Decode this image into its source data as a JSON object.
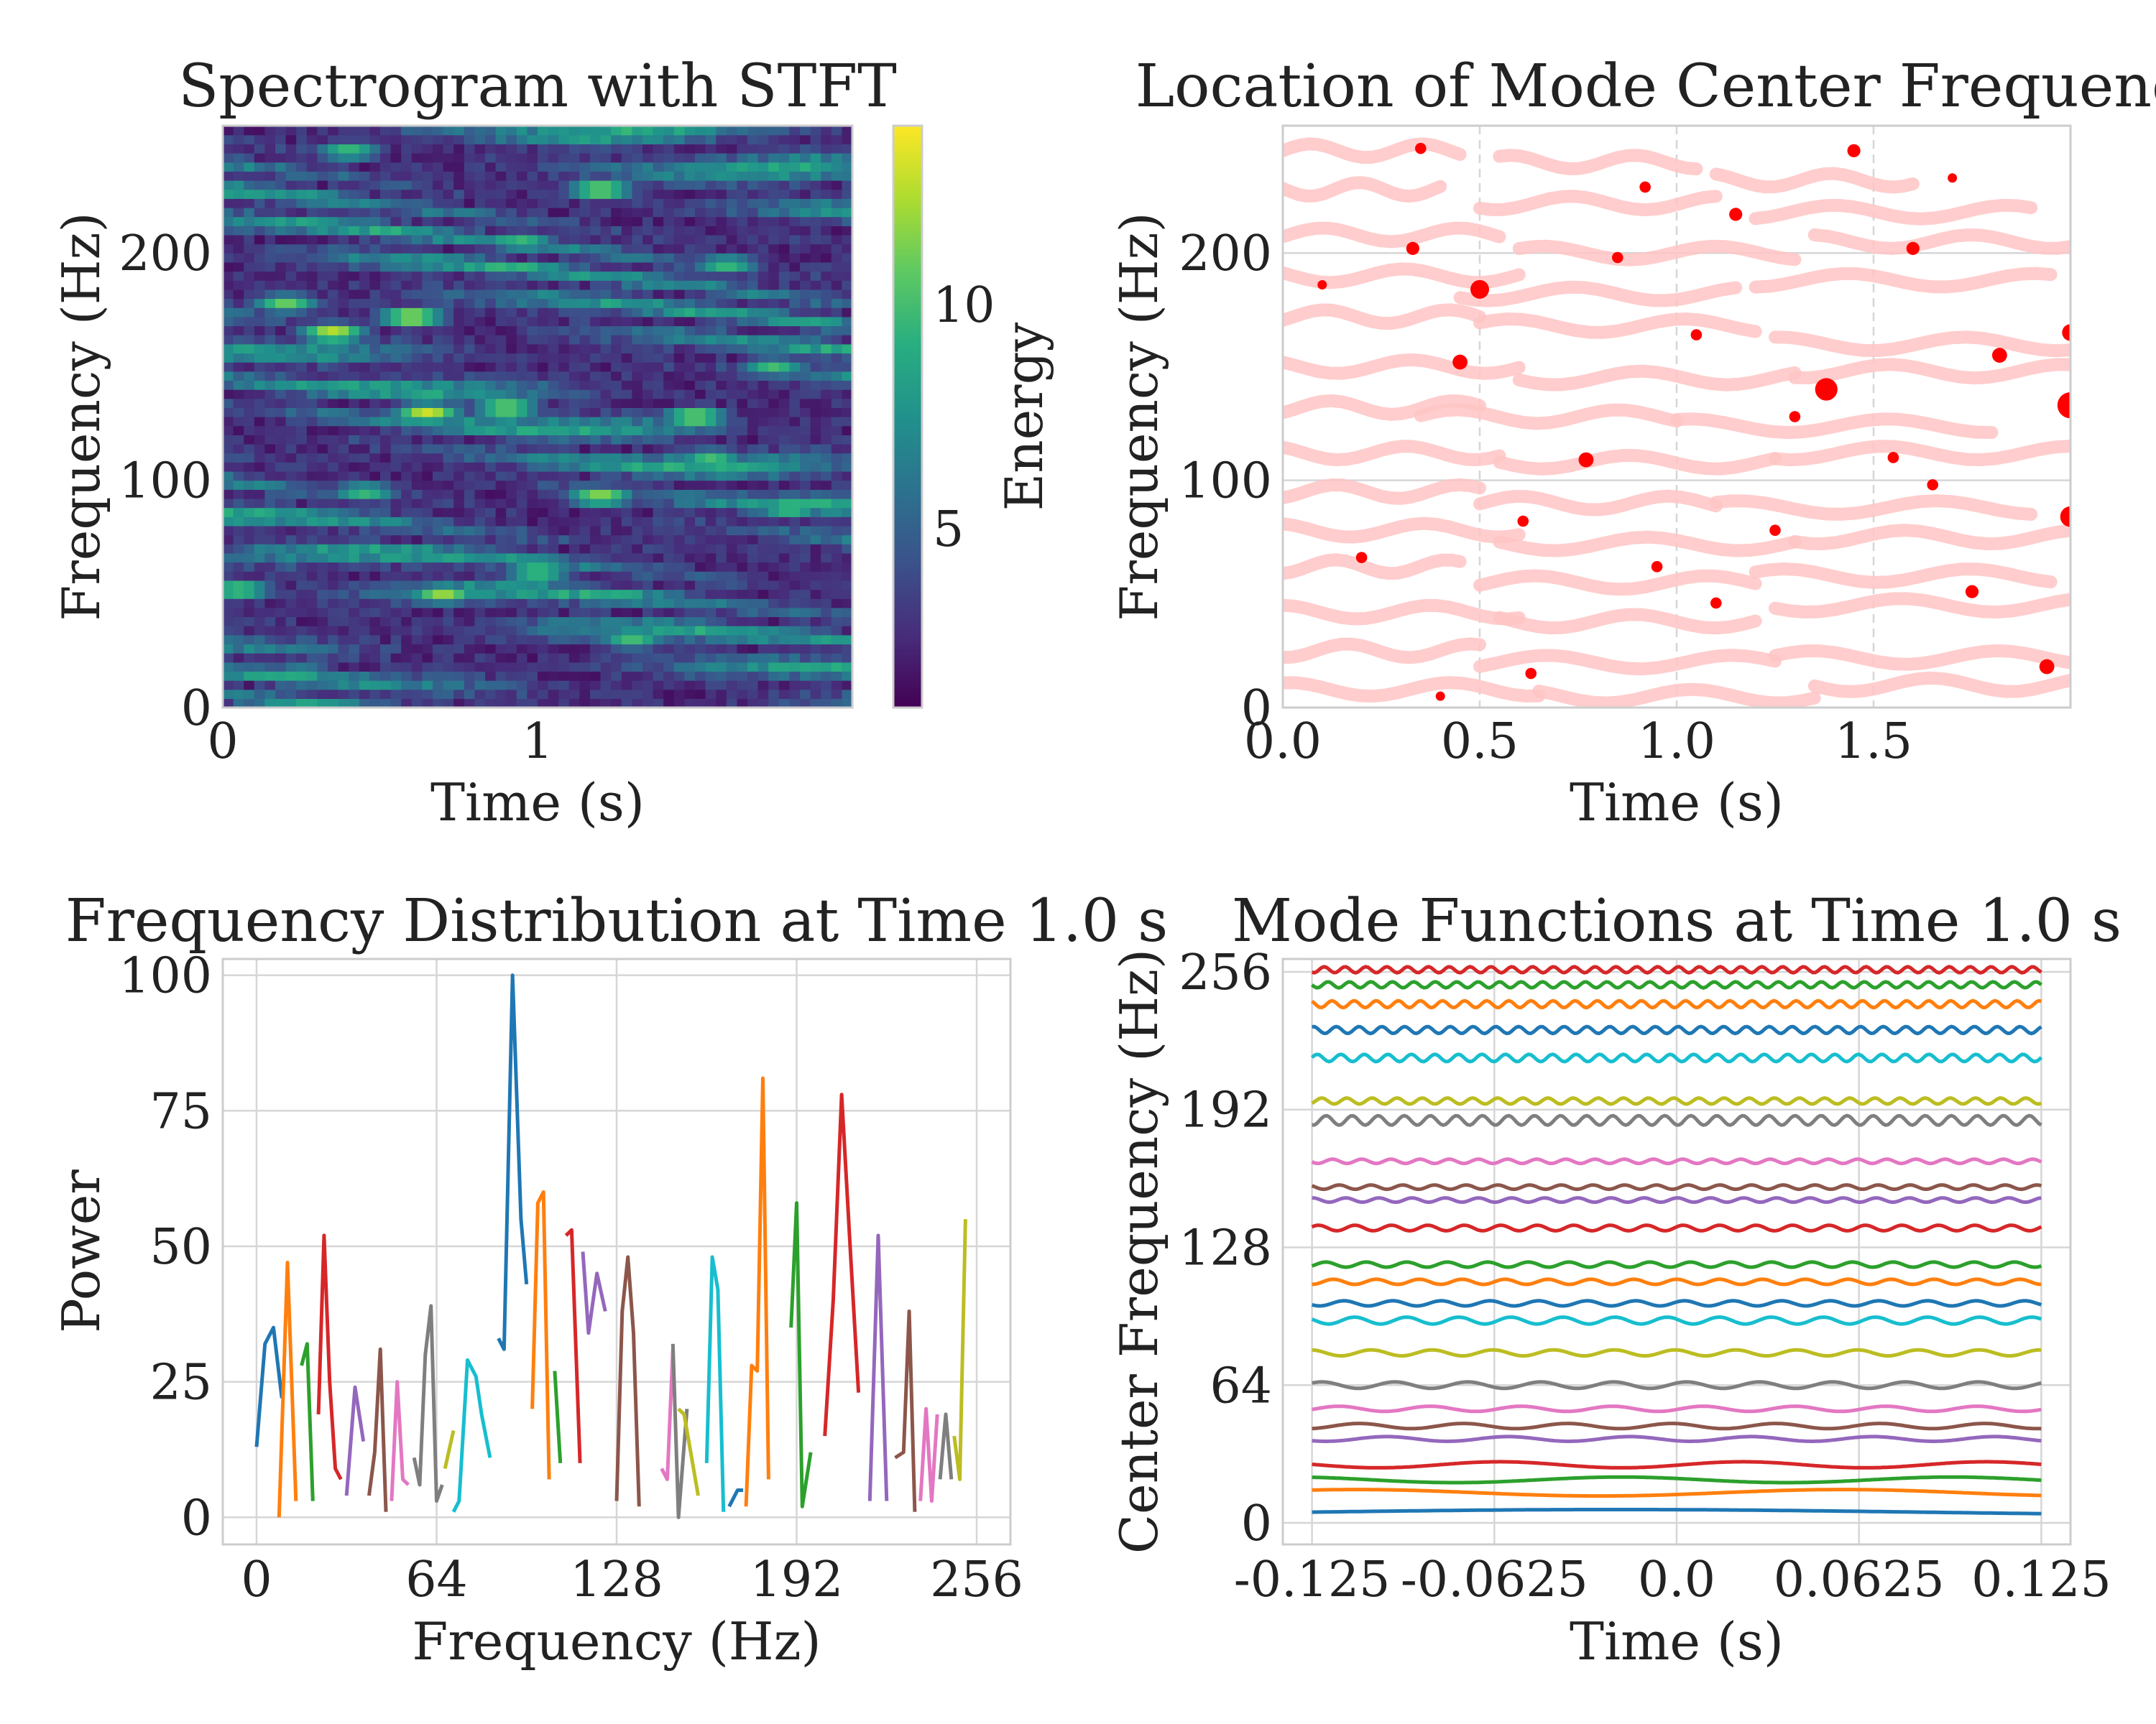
{
  "colors": {
    "palette": [
      "#1f77b4",
      "#ff7f0e",
      "#2ca02c",
      "#d62728",
      "#9467bd",
      "#8c564b",
      "#e377c2",
      "#7f7f7f",
      "#bcbd22",
      "#17becf"
    ],
    "viridis": [
      "#440154",
      "#472d7b",
      "#3b528b",
      "#2c728e",
      "#21918c",
      "#28ae80",
      "#5ec962",
      "#addc30",
      "#fde725"
    ],
    "ridge": "#ffc4c4",
    "peak": "#ff0000"
  },
  "chart_data": [
    {
      "type": "heatmap",
      "title": "Spectrogram with STFT",
      "xlabel": "Time (s)",
      "ylabel": "Frequency (Hz)",
      "xlim": [
        0,
        2
      ],
      "ylim": [
        0,
        256
      ],
      "xticks": [
        "0",
        "1"
      ],
      "yticks": [
        "0",
        "100",
        "200"
      ],
      "colorbar": {
        "label": "Energy",
        "range": [
          1,
          14
        ],
        "ticks": [
          "5",
          "10"
        ]
      },
      "bright_spots": [
        {
          "t": 0.35,
          "f": 165,
          "e": 13
        },
        {
          "t": 0.6,
          "f": 172,
          "e": 13
        },
        {
          "t": 0.65,
          "f": 130,
          "e": 13
        },
        {
          "t": 0.9,
          "f": 132,
          "e": 12
        },
        {
          "t": 1.2,
          "f": 93,
          "e": 12
        },
        {
          "t": 1.5,
          "f": 128,
          "e": 12
        },
        {
          "t": 0.7,
          "f": 50,
          "e": 12
        },
        {
          "t": 1.2,
          "f": 228,
          "e": 12
        },
        {
          "t": 0.4,
          "f": 245,
          "e": 10
        },
        {
          "t": 1.8,
          "f": 88,
          "e": 11
        },
        {
          "t": 1.6,
          "f": 195,
          "e": 10
        },
        {
          "t": 0.2,
          "f": 178,
          "e": 11
        },
        {
          "t": 1.0,
          "f": 60,
          "e": 11
        },
        {
          "t": 0.45,
          "f": 95,
          "e": 10
        },
        {
          "t": 1.3,
          "f": 30,
          "e": 10
        },
        {
          "t": 1.75,
          "f": 150,
          "e": 10
        },
        {
          "t": 0.05,
          "f": 52,
          "e": 11
        },
        {
          "t": 1.55,
          "f": 110,
          "e": 10
        },
        {
          "t": 0.95,
          "f": 205,
          "e": 10
        },
        {
          "t": 0.25,
          "f": 15,
          "e": 9
        }
      ]
    },
    {
      "type": "scatter",
      "title": "Location of Mode Center Frequency",
      "xlabel": "Time (s)",
      "ylabel": "Frequency (Hz)",
      "xlim": [
        0,
        2
      ],
      "ylim": [
        0,
        256
      ],
      "xticks": [
        "0.0",
        "0.5",
        "1.0",
        "1.5"
      ],
      "yticks": [
        "0",
        "100",
        "200"
      ],
      "ridges": [
        {
          "t0": 0.0,
          "t1": 0.45,
          "f": 245
        },
        {
          "t0": 0.55,
          "t1": 1.05,
          "f": 240
        },
        {
          "t0": 1.1,
          "t1": 1.6,
          "f": 232
        },
        {
          "t0": 0.0,
          "t1": 0.4,
          "f": 228
        },
        {
          "t0": 0.5,
          "t1": 1.1,
          "f": 222
        },
        {
          "t0": 1.2,
          "t1": 1.9,
          "f": 218
        },
        {
          "t0": 0.0,
          "t1": 0.55,
          "f": 208
        },
        {
          "t0": 0.6,
          "t1": 1.3,
          "f": 200
        },
        {
          "t0": 1.35,
          "t1": 2.0,
          "f": 205
        },
        {
          "t0": 0.0,
          "t1": 0.6,
          "f": 190
        },
        {
          "t0": 0.45,
          "t1": 1.15,
          "f": 182
        },
        {
          "t0": 1.2,
          "t1": 1.95,
          "f": 188
        },
        {
          "t0": 0.0,
          "t1": 0.5,
          "f": 172
        },
        {
          "t0": 0.5,
          "t1": 1.2,
          "f": 168
        },
        {
          "t0": 1.25,
          "t1": 2.0,
          "f": 160
        },
        {
          "t0": 0.0,
          "t1": 0.6,
          "f": 150
        },
        {
          "t0": 0.6,
          "t1": 1.3,
          "f": 145
        },
        {
          "t0": 1.3,
          "t1": 2.0,
          "f": 148
        },
        {
          "t0": 0.0,
          "t1": 0.5,
          "f": 132
        },
        {
          "t0": 0.35,
          "t1": 1.0,
          "f": 128
        },
        {
          "t0": 1.0,
          "t1": 1.8,
          "f": 124
        },
        {
          "t0": 0.0,
          "t1": 0.55,
          "f": 112
        },
        {
          "t0": 0.55,
          "t1": 1.25,
          "f": 108
        },
        {
          "t0": 1.25,
          "t1": 2.0,
          "f": 112
        },
        {
          "t0": 0.0,
          "t1": 0.5,
          "f": 95
        },
        {
          "t0": 0.5,
          "t1": 1.1,
          "f": 90
        },
        {
          "t0": 1.1,
          "t1": 1.9,
          "f": 88
        },
        {
          "t0": 0.0,
          "t1": 0.6,
          "f": 78
        },
        {
          "t0": 0.55,
          "t1": 1.3,
          "f": 72
        },
        {
          "t0": 1.3,
          "t1": 2.0,
          "f": 75
        },
        {
          "t0": 0.0,
          "t1": 0.45,
          "f": 62
        },
        {
          "t0": 0.5,
          "t1": 1.2,
          "f": 55
        },
        {
          "t0": 1.2,
          "t1": 1.95,
          "f": 58
        },
        {
          "t0": 0.0,
          "t1": 0.6,
          "f": 42
        },
        {
          "t0": 0.55,
          "t1": 1.2,
          "f": 38
        },
        {
          "t0": 1.25,
          "t1": 2.0,
          "f": 45
        },
        {
          "t0": 0.0,
          "t1": 0.5,
          "f": 25
        },
        {
          "t0": 0.5,
          "t1": 1.25,
          "f": 20
        },
        {
          "t0": 1.25,
          "t1": 2.0,
          "f": 22
        },
        {
          "t0": 0.0,
          "t1": 0.65,
          "f": 8
        },
        {
          "t0": 0.65,
          "t1": 1.35,
          "f": 5
        },
        {
          "t0": 1.35,
          "t1": 2.0,
          "f": 10
        }
      ],
      "peaks": [
        {
          "t": 0.35,
          "f": 246,
          "s": 6
        },
        {
          "t": 0.33,
          "f": 202,
          "s": 7
        },
        {
          "t": 0.5,
          "f": 184,
          "s": 10
        },
        {
          "t": 0.45,
          "f": 152,
          "s": 8
        },
        {
          "t": 0.92,
          "f": 229,
          "s": 6
        },
        {
          "t": 0.77,
          "f": 109,
          "s": 8
        },
        {
          "t": 0.61,
          "f": 82,
          "s": 6
        },
        {
          "t": 1.05,
          "f": 164,
          "s": 6
        },
        {
          "t": 1.15,
          "f": 217,
          "s": 7
        },
        {
          "t": 1.38,
          "f": 140,
          "s": 12
        },
        {
          "t": 1.3,
          "f": 128,
          "s": 6
        },
        {
          "t": 1.6,
          "f": 202,
          "s": 7
        },
        {
          "t": 1.65,
          "f": 98,
          "s": 6
        },
        {
          "t": 1.82,
          "f": 155,
          "s": 8
        },
        {
          "t": 2.0,
          "f": 133,
          "s": 14
        },
        {
          "t": 2.0,
          "f": 84,
          "s": 11
        },
        {
          "t": 2.0,
          "f": 165,
          "s": 9
        },
        {
          "t": 1.45,
          "f": 245,
          "s": 7
        },
        {
          "t": 0.2,
          "f": 66,
          "s": 6
        },
        {
          "t": 0.4,
          "f": 5,
          "s": 5
        },
        {
          "t": 1.75,
          "f": 51,
          "s": 7
        },
        {
          "t": 1.94,
          "f": 18,
          "s": 8
        },
        {
          "t": 0.63,
          "f": 15,
          "s": 6
        },
        {
          "t": 1.1,
          "f": 46,
          "s": 6
        },
        {
          "t": 0.1,
          "f": 186,
          "s": 5
        },
        {
          "t": 0.85,
          "f": 198,
          "s": 6
        },
        {
          "t": 1.55,
          "f": 110,
          "s": 6
        },
        {
          "t": 0.95,
          "f": 62,
          "s": 6
        },
        {
          "t": 1.25,
          "f": 78,
          "s": 6
        },
        {
          "t": 1.7,
          "f": 233,
          "s": 5
        }
      ]
    },
    {
      "type": "line",
      "title": "Frequency Distribution at Time 1.0 s",
      "xlabel": "Frequency (Hz)",
      "ylabel": "Power",
      "xlim": [
        -12,
        268
      ],
      "ylim": [
        -5,
        103
      ],
      "xticks": [
        0,
        64,
        128,
        192,
        256
      ],
      "yticks": [
        0,
        25,
        50,
        75,
        100
      ],
      "series": [
        {
          "x": [
            0,
            3,
            6,
            9
          ],
          "y": [
            13,
            32,
            35,
            22
          ]
        },
        {
          "x": [
            8,
            11,
            14
          ],
          "y": [
            0,
            47,
            3
          ]
        },
        {
          "x": [
            16,
            18,
            20
          ],
          "y": [
            28,
            32,
            3
          ]
        },
        {
          "x": [
            22,
            24,
            26,
            28,
            30
          ],
          "y": [
            19,
            52,
            25,
            9,
            7
          ]
        },
        {
          "x": [
            32,
            35,
            38
          ],
          "y": [
            4,
            24,
            14
          ]
        },
        {
          "x": [
            40,
            42,
            44,
            46
          ],
          "y": [
            4,
            12,
            31,
            1
          ]
        },
        {
          "x": [
            48,
            50,
            52,
            54
          ],
          "y": [
            3,
            25,
            7,
            6
          ]
        },
        {
          "x": [
            56,
            58,
            60,
            62,
            64,
            66
          ],
          "y": [
            11,
            6,
            30,
            39,
            3,
            6
          ]
        },
        {
          "x": [
            67,
            70
          ],
          "y": [
            9,
            16
          ]
        },
        {
          "x": [
            70,
            72,
            75,
            78,
            80,
            83
          ],
          "y": [
            1,
            3,
            29,
            26,
            19,
            11
          ]
        },
        {
          "x": [
            86,
            88,
            91,
            94,
            96
          ],
          "y": [
            33,
            31,
            100,
            55,
            43
          ]
        },
        {
          "x": [
            98,
            100,
            102,
            104
          ],
          "y": [
            20,
            58,
            60,
            7
          ]
        },
        {
          "x": [
            106,
            108
          ],
          "y": [
            27,
            10
          ]
        },
        {
          "x": [
            110,
            112,
            115
          ],
          "y": [
            52,
            53,
            10
          ]
        },
        {
          "x": [
            116,
            118,
            121,
            124
          ],
          "y": [
            49,
            34,
            45,
            38
          ]
        },
        {
          "x": [
            128,
            130,
            132,
            134,
            136
          ],
          "y": [
            3,
            38,
            48,
            34,
            2
          ]
        },
        {
          "x": [
            144,
            146,
            148
          ],
          "y": [
            9,
            7,
            31
          ]
        },
        {
          "x": [
            148,
            150,
            153
          ],
          "y": [
            32,
            0,
            20
          ]
        },
        {
          "x": [
            150,
            152,
            155,
            157
          ],
          "y": [
            20,
            19,
            10,
            4
          ]
        },
        {
          "x": [
            160,
            162,
            164,
            166
          ],
          "y": [
            10,
            48,
            42,
            1
          ]
        },
        {
          "x": [
            168,
            171,
            173
          ],
          "y": [
            2,
            5,
            5
          ]
        },
        {
          "x": [
            174,
            176,
            178,
            180,
            182
          ],
          "y": [
            2,
            28,
            27,
            81,
            7
          ]
        },
        {
          "x": [
            190,
            192,
            194,
            197
          ],
          "y": [
            35,
            58,
            2,
            12
          ]
        },
        {
          "x": [
            202,
            205,
            208,
            211,
            214
          ],
          "y": [
            15,
            40,
            78,
            50,
            23
          ]
        },
        {
          "x": [
            218,
            221,
            224
          ],
          "y": [
            3,
            52,
            3
          ]
        },
        {
          "x": [
            227,
            230,
            232,
            234
          ],
          "y": [
            11,
            12,
            38,
            1
          ]
        },
        {
          "x": [
            236,
            238,
            240,
            242
          ],
          "y": [
            3,
            20,
            3,
            19
          ]
        },
        {
          "x": [
            243,
            245,
            247
          ],
          "y": [
            7,
            19,
            7
          ]
        },
        {
          "x": [
            248,
            250,
            252
          ],
          "y": [
            15,
            7,
            55
          ]
        }
      ]
    },
    {
      "type": "line",
      "title": "Mode Functions at Time 1.0 s",
      "xlabel": "Time (s)",
      "ylabel": "Center Frequency (Hz)",
      "xlim": [
        -0.135,
        0.135
      ],
      "ylim": [
        -10,
        262
      ],
      "xticks": [
        "-0.125",
        "-0.0625",
        "0.0",
        "0.0625",
        "0.125"
      ],
      "xtick_values": [
        -0.125,
        -0.0625,
        0.0,
        0.0625,
        0.125
      ],
      "yticks": [
        0,
        64,
        128,
        192,
        256
      ],
      "modes": [
        {
          "f": 5,
          "cycles": 0.6,
          "amp": 1.2
        },
        {
          "f": 14,
          "cycles": 1.5,
          "amp": 1.5
        },
        {
          "f": 20,
          "cycles": 2.2,
          "amp": 1.3
        },
        {
          "f": 27,
          "cycles": 3,
          "amp": 1.4
        },
        {
          "f": 39,
          "cycles": 6,
          "amp": 1.1
        },
        {
          "f": 45,
          "cycles": 7,
          "amp": 1.2
        },
        {
          "f": 53,
          "cycles": 8,
          "amp": 1.2
        },
        {
          "f": 64,
          "cycles": 10,
          "amp": 1.5
        },
        {
          "f": 79,
          "cycles": 12,
          "amp": 1.4
        },
        {
          "f": 94,
          "cycles": 14,
          "amp": 1.6
        },
        {
          "f": 102,
          "cycles": 15,
          "amp": 1.2
        },
        {
          "f": 112,
          "cycles": 17,
          "amp": 1.2
        },
        {
          "f": 120,
          "cycles": 18,
          "amp": 1.2
        },
        {
          "f": 137,
          "cycles": 20,
          "amp": 1.3
        },
        {
          "f": 150,
          "cycles": 22,
          "amp": 1.0
        },
        {
          "f": 156,
          "cycles": 23,
          "amp": 1.0
        },
        {
          "f": 168,
          "cycles": 25,
          "amp": 1.0
        },
        {
          "f": 187,
          "cycles": 28,
          "amp": 2.2
        },
        {
          "f": 196,
          "cycles": 29,
          "amp": 1.4
        },
        {
          "f": 216,
          "cycles": 31,
          "amp": 1.7
        },
        {
          "f": 229,
          "cycles": 32,
          "amp": 1.6
        },
        {
          "f": 241,
          "cycles": 33,
          "amp": 1.6
        },
        {
          "f": 250,
          "cycles": 34,
          "amp": 1.4
        },
        {
          "f": 257,
          "cycles": 35,
          "amp": 1.4
        }
      ]
    }
  ]
}
